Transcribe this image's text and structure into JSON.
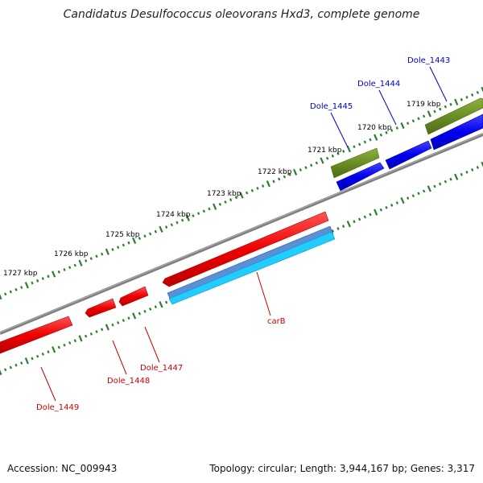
{
  "title": "Candidatus Desulfococcus oleovorans Hxd3, complete genome",
  "accession": "Accession: NC_009943",
  "summary": "Topology: circular; Length: 3,944,167 bp; Genes: 3,317",
  "kbp_labels": [
    "1719 kbp",
    "1720 kbp",
    "1721 kbp",
    "1722 kbp",
    "1723 kbp",
    "1724 kbp",
    "1725 kbp",
    "1726 kbp",
    "1727 kbp"
  ],
  "gene_labels": {
    "dole_1443": "Dole_1443",
    "dole_1444": "Dole_1444",
    "dole_1445": "Dole_1445",
    "carb": "carB",
    "dole_1447": "Dole_1447",
    "dole_1448": "Dole_1448",
    "dole_1449": "Dole_1449"
  },
  "colors": {
    "backbone": "#7a7a7a",
    "forward_cds": "#0000ee",
    "forward_other": "#6b8e23",
    "reverse_cds": "#ee0000",
    "reverse_rna": "#5b8fd6",
    "reverse_rna_light": "#22ccff",
    "ticks": "#2e7d2e",
    "label_blue": "#0000cc",
    "label_red": "#cc0000"
  }
}
